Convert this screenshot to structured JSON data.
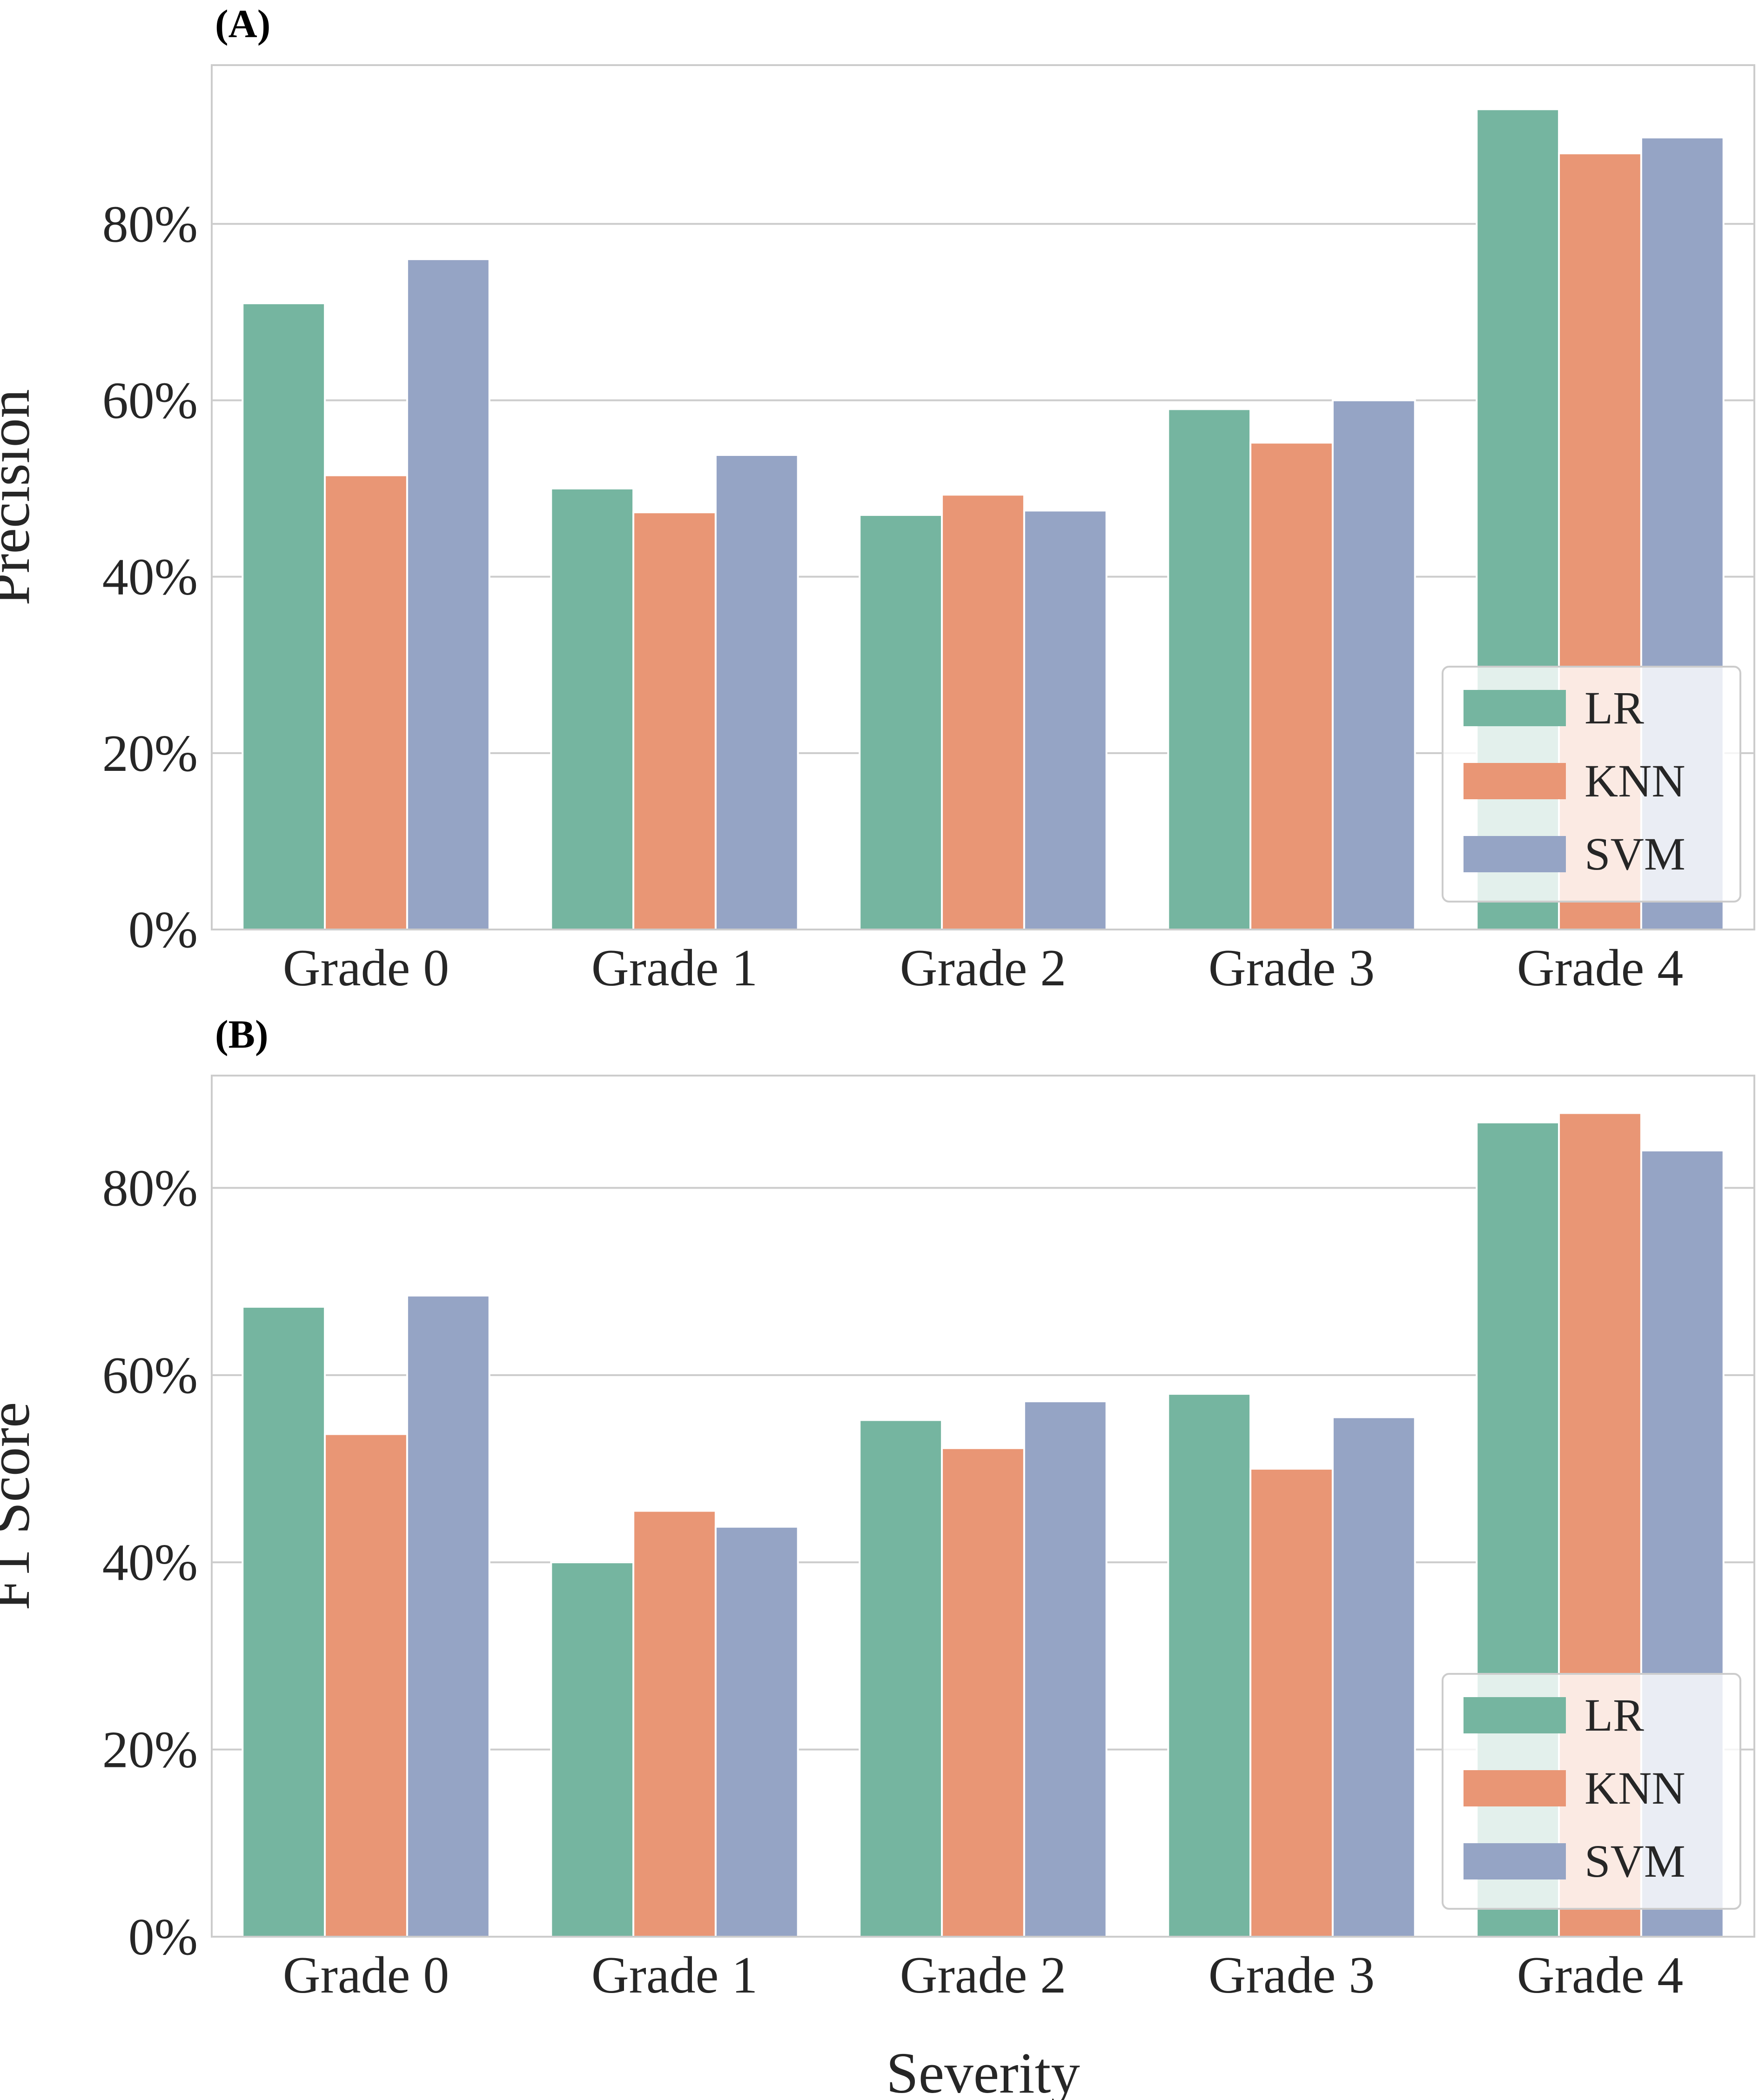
{
  "chart_data": [
    {
      "type": "bar",
      "panel_label": "(A)",
      "title": "",
      "xlabel": "",
      "ylabel": "Precision",
      "categories": [
        "Grade 0",
        "Grade 1",
        "Grade 2",
        "Grade 3",
        "Grade 4"
      ],
      "series": [
        {
          "name": "LR",
          "color": "#75b5a0",
          "values": [
            71,
            50,
            47,
            59,
            93
          ]
        },
        {
          "name": "KNN",
          "color": "#e99675",
          "values": [
            51.5,
            47.3,
            49.3,
            55.2,
            88
          ]
        },
        {
          "name": "SVM",
          "color": "#95a4c5",
          "values": [
            76,
            53.8,
            47.5,
            60,
            89.8
          ]
        }
      ],
      "ylim": [
        0,
        98
      ],
      "yticks": [
        0,
        20,
        40,
        60,
        80
      ],
      "ytick_labels": [
        "0%",
        "20%",
        "40%",
        "60%",
        "80%"
      ],
      "grid": true,
      "legend_position": "lower-right"
    },
    {
      "type": "bar",
      "panel_label": "(B)",
      "title": "",
      "xlabel": "Severity",
      "ylabel": "F1 Score",
      "categories": [
        "Grade 0",
        "Grade 1",
        "Grade 2",
        "Grade 3",
        "Grade 4"
      ],
      "series": [
        {
          "name": "LR",
          "color": "#75b5a0",
          "values": [
            67.3,
            40,
            55.2,
            58,
            87
          ]
        },
        {
          "name": "KNN",
          "color": "#e99675",
          "values": [
            53.7,
            45.5,
            52.2,
            50,
            88
          ]
        },
        {
          "name": "SVM",
          "color": "#95a4c5",
          "values": [
            68.5,
            43.8,
            57.2,
            55.5,
            84
          ]
        }
      ],
      "ylim": [
        0,
        92
      ],
      "yticks": [
        0,
        20,
        40,
        60,
        80
      ],
      "ytick_labels": [
        "0%",
        "20%",
        "40%",
        "60%",
        "80%"
      ],
      "grid": true,
      "legend_position": "lower-right"
    }
  ]
}
